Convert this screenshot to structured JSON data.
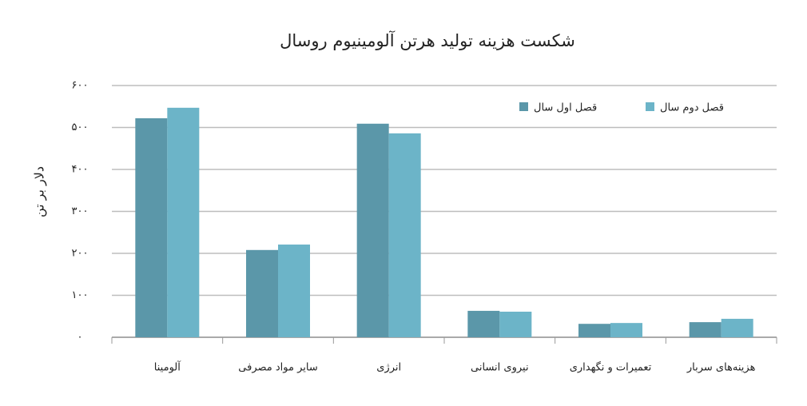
{
  "chart_data": {
    "type": "bar",
    "title": "شکست هزینه تولید هرتن آلومینیوم روسال",
    "y_label": "دلار بر تن",
    "categories": [
      "آلومینا",
      "سایر مواد مصرفی",
      "انرژی",
      "نیروی انسانی",
      "تعمیرات و نگهداری",
      "هزینه‌های سربار"
    ],
    "series": [
      {
        "name": "قصل اول سال",
        "color": "#5b97a9",
        "values": [
          522,
          208,
          509,
          63,
          32,
          36
        ]
      },
      {
        "name": "قصل دوم سال",
        "color": "#6cb4c8",
        "values": [
          547,
          221,
          486,
          61,
          34,
          44
        ]
      }
    ],
    "ylim": [
      0,
      600
    ],
    "yticks": [
      {
        "value": 0,
        "label": "۰"
      },
      {
        "value": 100,
        "label": "۱۰۰"
      },
      {
        "value": 200,
        "label": "۲۰۰"
      },
      {
        "value": 300,
        "label": "۳۰۰"
      },
      {
        "value": 400,
        "label": "۴۰۰"
      },
      {
        "value": 500,
        "label": "۵۰۰"
      },
      {
        "value": 600,
        "label": "۶۰۰"
      }
    ],
    "grid": true,
    "legend": "top-right"
  }
}
